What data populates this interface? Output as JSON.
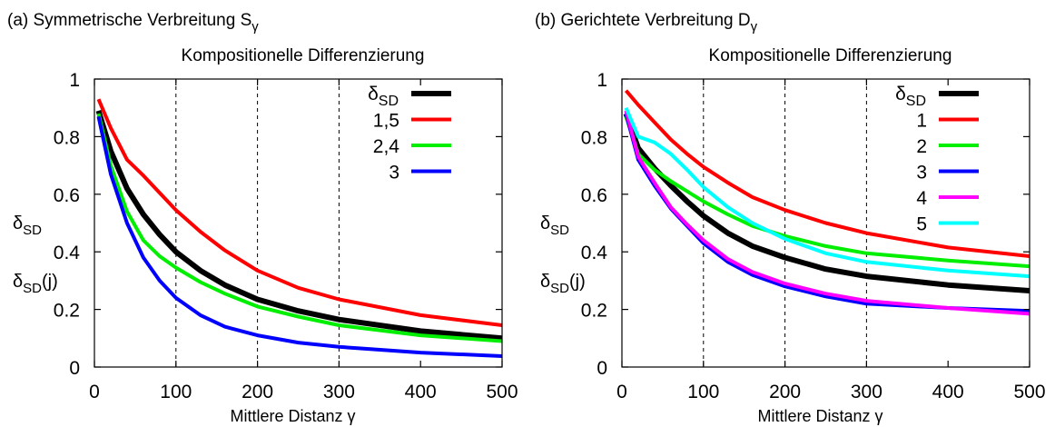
{
  "chart_data": [
    {
      "type": "line",
      "panel_title": "(a) Symmetrische Verbreitung S",
      "panel_title_sub": "γ",
      "title": "Kompositionelle Differenzierung",
      "xlabel": "Mittlere Distanz γ",
      "ylabel_main": "δ",
      "ylabel_main_sub": "SD",
      "ylabel_j": "δ",
      "ylabel_j_sub": "SD",
      "ylabel_j_suffix": "(j)",
      "xlim": [
        0,
        500
      ],
      "ylim": [
        0,
        1
      ],
      "xticks": [
        0,
        100,
        200,
        300,
        400,
        500
      ],
      "yticks": [
        0,
        0.2,
        0.4,
        0.6,
        0.8,
        1
      ],
      "xtick_labels": [
        "0",
        "100",
        "200",
        "300",
        "400",
        "500"
      ],
      "ytick_labels": [
        "0",
        "0.2",
        "0.4",
        "0.6",
        "0.8",
        "1"
      ],
      "grid_x": [
        100,
        200,
        300
      ],
      "legend_position": "top-right",
      "legend_head": "δ",
      "legend_head_sub": "SD",
      "series": [
        {
          "name": "",
          "color": "#000000",
          "width": 6,
          "x": [
            5,
            20,
            40,
            60,
            80,
            100,
            130,
            160,
            200,
            250,
            300,
            400,
            500
          ],
          "y": [
            0.89,
            0.75,
            0.62,
            0.53,
            0.46,
            0.4,
            0.335,
            0.285,
            0.235,
            0.195,
            0.165,
            0.125,
            0.1
          ]
        },
        {
          "name": "1,5",
          "color": "#ff0000",
          "width": 4,
          "x": [
            5,
            20,
            40,
            60,
            80,
            100,
            130,
            160,
            200,
            250,
            300,
            400,
            500
          ],
          "y": [
            0.93,
            0.83,
            0.72,
            0.665,
            0.605,
            0.545,
            0.47,
            0.405,
            0.335,
            0.275,
            0.235,
            0.18,
            0.145
          ]
        },
        {
          "name": "2,4",
          "color": "#00ee00",
          "width": 4,
          "x": [
            5,
            20,
            40,
            60,
            80,
            100,
            130,
            160,
            200,
            250,
            300,
            400,
            500
          ],
          "y": [
            0.88,
            0.7,
            0.54,
            0.44,
            0.385,
            0.345,
            0.295,
            0.255,
            0.21,
            0.175,
            0.145,
            0.11,
            0.09
          ]
        },
        {
          "name": "3",
          "color": "#0000ff",
          "width": 4,
          "x": [
            5,
            20,
            40,
            60,
            80,
            100,
            130,
            160,
            200,
            250,
            300,
            400,
            500
          ],
          "y": [
            0.87,
            0.67,
            0.5,
            0.38,
            0.3,
            0.24,
            0.18,
            0.14,
            0.11,
            0.085,
            0.07,
            0.05,
            0.038
          ]
        }
      ]
    },
    {
      "type": "line",
      "panel_title": "(b) Gerichtete Verbreitung D",
      "panel_title_sub": "γ",
      "title": "Kompositionelle Differenzierung",
      "xlabel": "Mittlere Distanz γ",
      "ylabel_main": "δ",
      "ylabel_main_sub": "SD",
      "ylabel_j": "δ",
      "ylabel_j_sub": "SD",
      "ylabel_j_suffix": "(j)",
      "xlim": [
        0,
        500
      ],
      "ylim": [
        0,
        1
      ],
      "xticks": [
        0,
        100,
        200,
        300,
        400,
        500
      ],
      "yticks": [
        0,
        0.2,
        0.4,
        0.6,
        0.8,
        1
      ],
      "xtick_labels": [
        "0",
        "100",
        "200",
        "300",
        "400",
        "500"
      ],
      "ytick_labels": [
        "0",
        "0.2",
        "0.4",
        "0.6",
        "0.8",
        "1"
      ],
      "grid_x": [
        100,
        200,
        300
      ],
      "legend_position": "top-right",
      "legend_head": "δ",
      "legend_head_sub": "SD",
      "series": [
        {
          "name": "",
          "color": "#000000",
          "width": 6,
          "x": [
            5,
            20,
            40,
            60,
            80,
            100,
            130,
            160,
            200,
            250,
            300,
            400,
            500
          ],
          "y": [
            0.88,
            0.76,
            0.69,
            0.63,
            0.575,
            0.525,
            0.465,
            0.42,
            0.38,
            0.34,
            0.315,
            0.285,
            0.265
          ]
        },
        {
          "name": "1",
          "color": "#ff0000",
          "width": 4,
          "x": [
            5,
            20,
            40,
            60,
            80,
            100,
            130,
            160,
            200,
            250,
            300,
            400,
            500
          ],
          "y": [
            0.96,
            0.91,
            0.85,
            0.79,
            0.74,
            0.695,
            0.64,
            0.59,
            0.545,
            0.5,
            0.465,
            0.415,
            0.385
          ]
        },
        {
          "name": "2",
          "color": "#00ee00",
          "width": 4,
          "x": [
            5,
            20,
            40,
            60,
            80,
            100,
            130,
            160,
            200,
            250,
            300,
            400,
            500
          ],
          "y": [
            0.87,
            0.74,
            0.685,
            0.645,
            0.61,
            0.575,
            0.53,
            0.49,
            0.455,
            0.42,
            0.395,
            0.37,
            0.35
          ]
        },
        {
          "name": "3",
          "color": "#0000ff",
          "width": 4,
          "x": [
            5,
            20,
            40,
            60,
            80,
            100,
            130,
            160,
            200,
            250,
            300,
            400,
            500
          ],
          "y": [
            0.88,
            0.72,
            0.63,
            0.55,
            0.49,
            0.43,
            0.365,
            0.32,
            0.28,
            0.245,
            0.22,
            0.205,
            0.195
          ]
        },
        {
          "name": "4",
          "color": "#ff00ff",
          "width": 4,
          "x": [
            5,
            20,
            40,
            60,
            80,
            100,
            130,
            160,
            200,
            250,
            300,
            400,
            500
          ],
          "y": [
            0.89,
            0.73,
            0.64,
            0.555,
            0.495,
            0.44,
            0.375,
            0.33,
            0.29,
            0.255,
            0.23,
            0.205,
            0.185
          ]
        },
        {
          "name": "5",
          "color": "#00ffff",
          "width": 4,
          "x": [
            5,
            20,
            40,
            60,
            80,
            100,
            130,
            160,
            200,
            250,
            300,
            400,
            500
          ],
          "y": [
            0.9,
            0.8,
            0.78,
            0.74,
            0.685,
            0.625,
            0.555,
            0.5,
            0.445,
            0.395,
            0.365,
            0.335,
            0.315
          ]
        }
      ]
    }
  ]
}
